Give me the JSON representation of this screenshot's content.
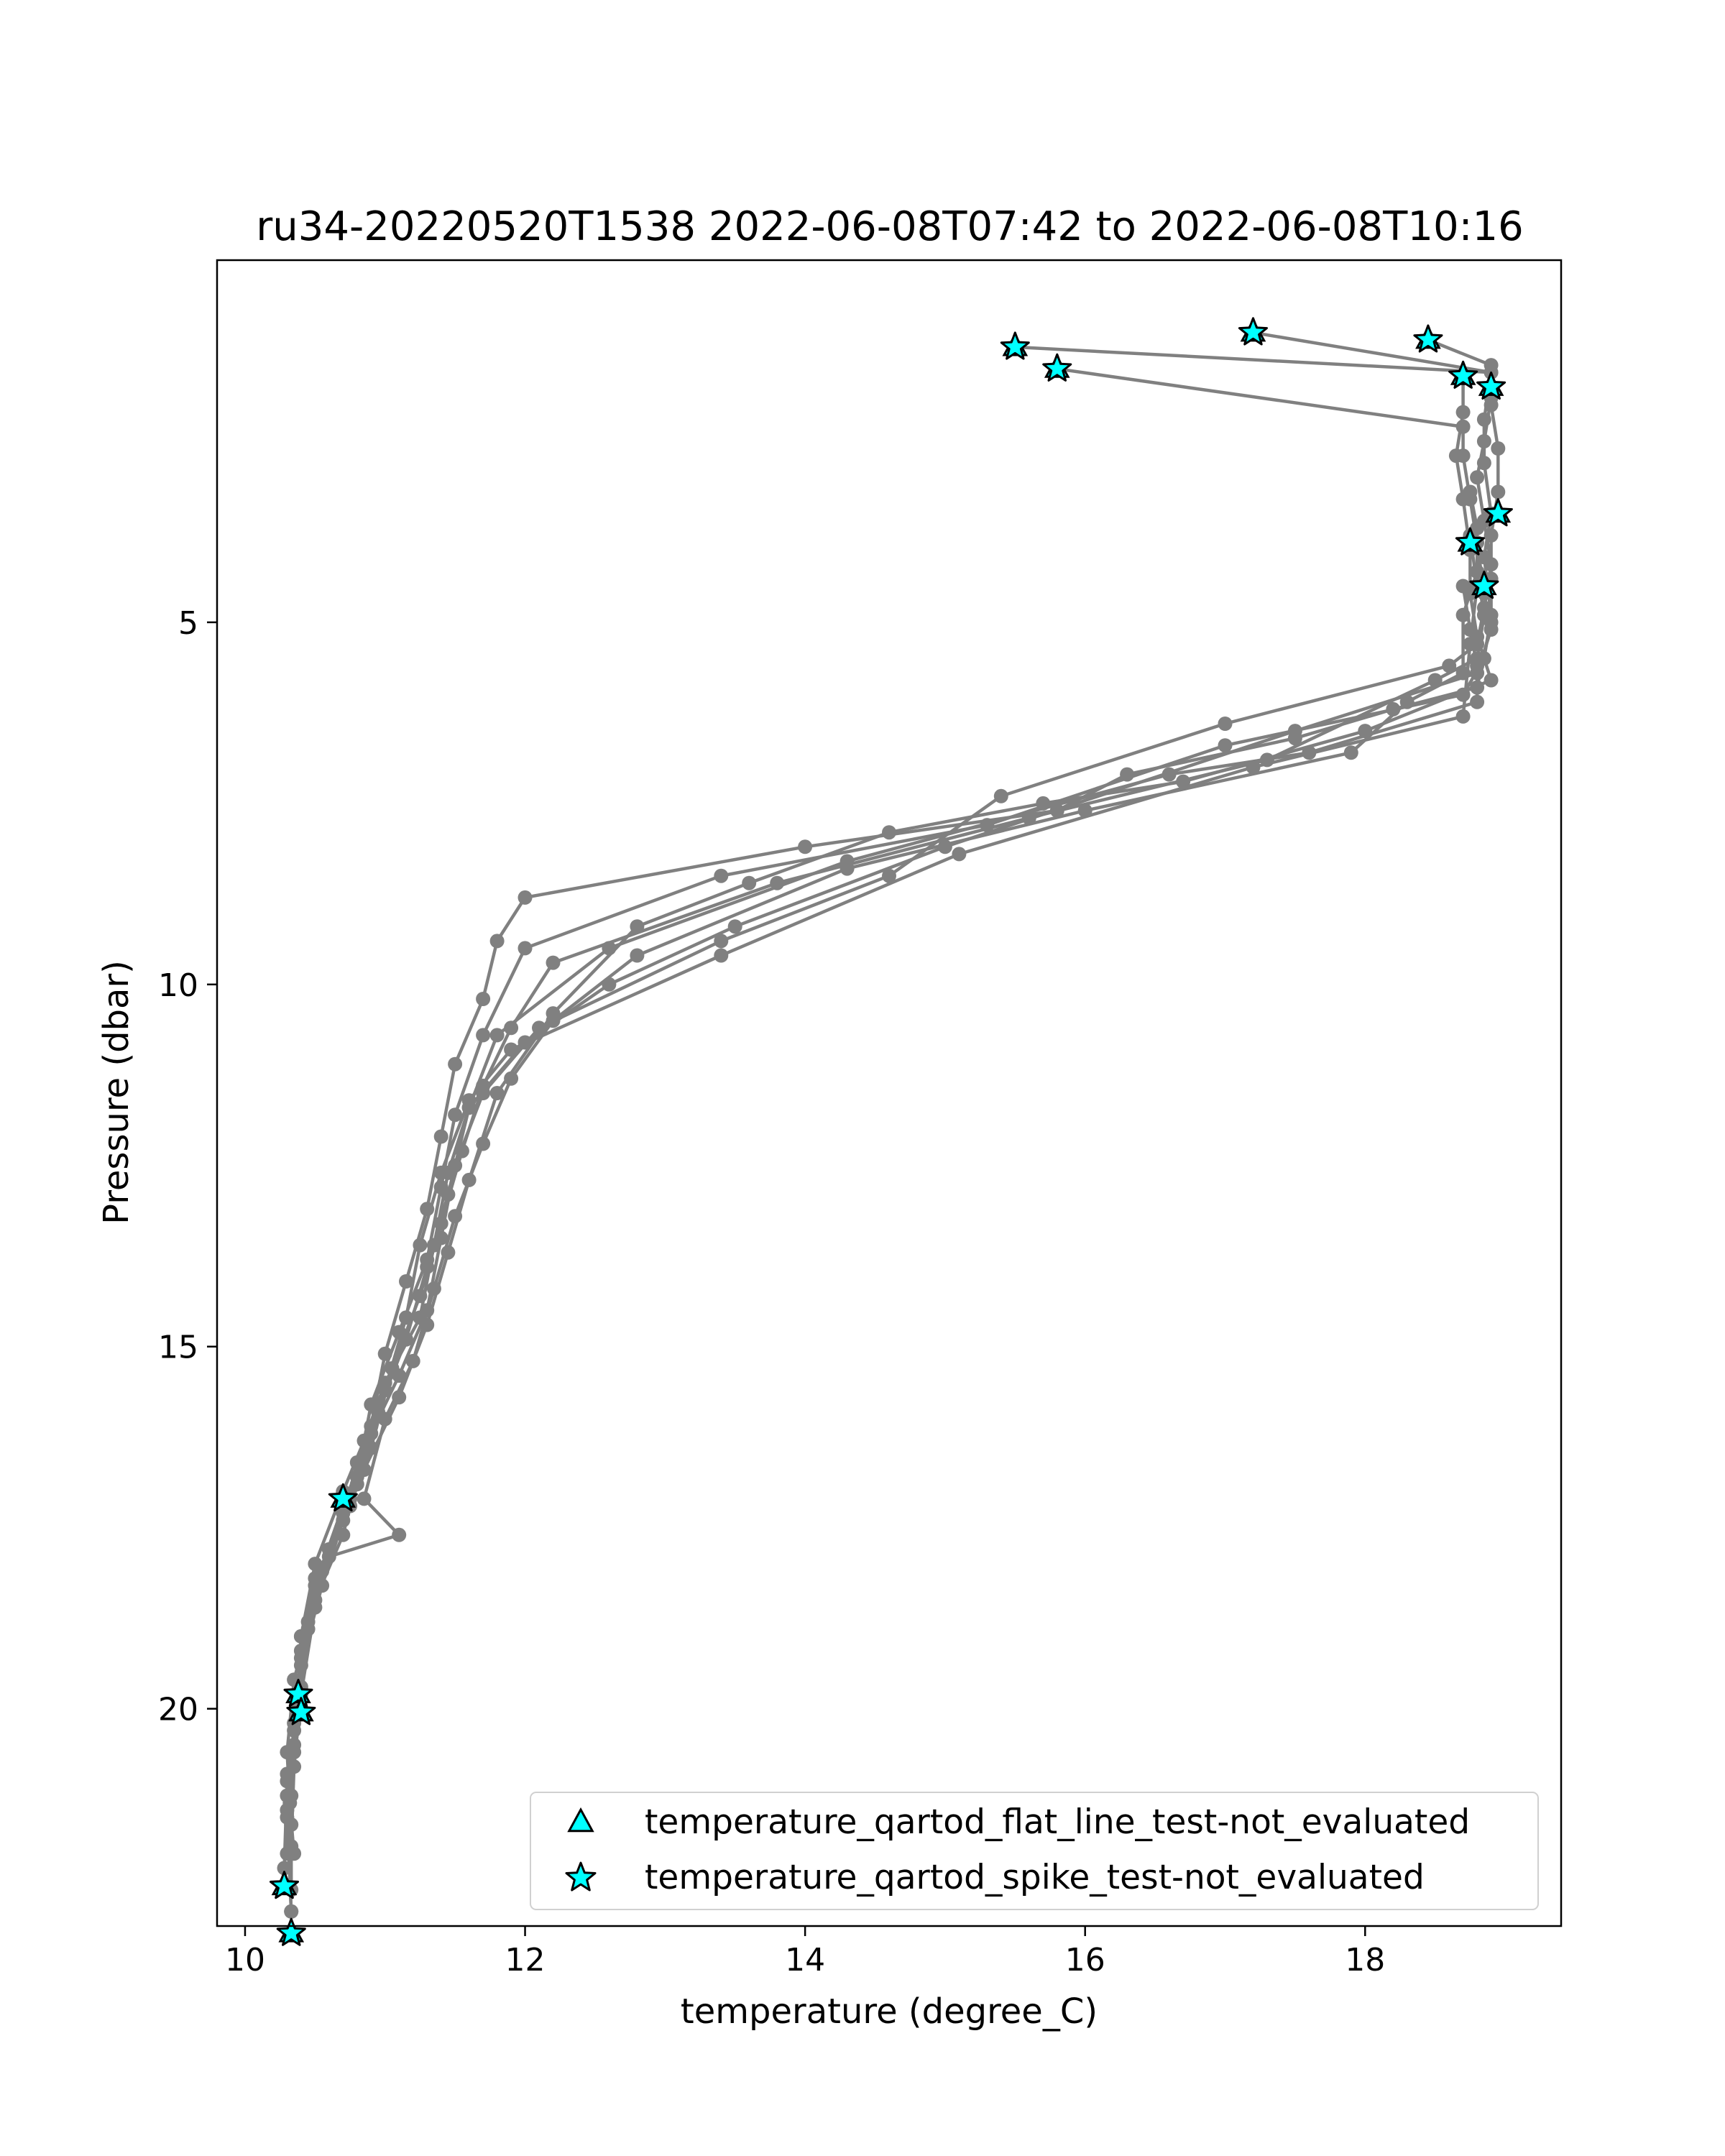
{
  "chart_data": {
    "type": "line",
    "title": "ru34-20220520T1538 2022-06-08T07:42 to 2022-06-08T10:16",
    "xlabel": "temperature (degree_C)",
    "ylabel": "Pressure (dbar)",
    "xlim": [
      9.8,
      19.4
    ],
    "ylim": [
      23.0,
      0.0
    ],
    "y_inverted": true,
    "grid": false,
    "xticks": [
      10,
      12,
      14,
      16,
      18
    ],
    "yticks": [
      5,
      10,
      15,
      20
    ],
    "line_color": "#808080",
    "marker_color": "#00ffff",
    "legend": {
      "position": "lower-right",
      "entries": [
        {
          "label": "temperature_qartod_flat_line_test-not_evaluated",
          "marker": "triangle"
        },
        {
          "label": "temperature_qartod_spike_test-not_evaluated",
          "marker": "star"
        }
      ]
    },
    "series": [
      {
        "points": [
          [
            15.5,
            1.2
          ],
          [
            18.9,
            1.55
          ],
          [
            18.9,
            1.9
          ],
          [
            18.85,
            2.5
          ],
          [
            18.8,
            3.0
          ],
          [
            18.85,
            3.6
          ],
          [
            18.9,
            4.2
          ],
          [
            18.85,
            4.8
          ],
          [
            18.8,
            5.3
          ],
          [
            18.6,
            5.6
          ],
          [
            17.0,
            6.4
          ],
          [
            15.4,
            7.4
          ],
          [
            14.6,
            8.5
          ],
          [
            13.4,
            9.4
          ],
          [
            12.1,
            10.6
          ],
          [
            11.7,
            11.5
          ],
          [
            11.5,
            12.5
          ],
          [
            11.4,
            13.5
          ],
          [
            11.3,
            14.5
          ],
          [
            11.1,
            15.4
          ],
          [
            10.9,
            16.2
          ],
          [
            10.7,
            17.2
          ],
          [
            10.5,
            18.3
          ],
          [
            10.4,
            19.3
          ],
          [
            10.35,
            20.2
          ],
          [
            10.3,
            21.4
          ],
          [
            10.33,
            22.8
          ]
        ]
      },
      {
        "points": [
          [
            15.8,
            1.5
          ],
          [
            18.7,
            2.3
          ],
          [
            18.7,
            2.7
          ],
          [
            18.75,
            3.3
          ],
          [
            18.8,
            3.9
          ],
          [
            18.85,
            4.6
          ],
          [
            18.9,
            5.1
          ],
          [
            18.8,
            5.7
          ],
          [
            17.5,
            6.5
          ],
          [
            15.0,
            8.1
          ],
          [
            13.5,
            9.2
          ],
          [
            12.6,
            10.0
          ],
          [
            12.0,
            10.8
          ],
          [
            11.6,
            11.7
          ],
          [
            11.45,
            12.6
          ],
          [
            11.35,
            13.6
          ],
          [
            11.25,
            14.6
          ],
          [
            11.0,
            15.5
          ],
          [
            10.85,
            16.3
          ],
          [
            10.7,
            17.0
          ],
          [
            10.5,
            18.0
          ],
          [
            10.4,
            19.0
          ],
          [
            10.38,
            20.0
          ],
          [
            10.3,
            21.0
          ],
          [
            10.28,
            22.2
          ]
        ]
      },
      {
        "points": [
          [
            17.2,
            1.0
          ],
          [
            18.9,
            1.55
          ],
          [
            18.85,
            2.2
          ],
          [
            18.85,
            2.8
          ],
          [
            18.9,
            3.5
          ],
          [
            18.85,
            4.1
          ],
          [
            18.9,
            4.9
          ],
          [
            18.85,
            5.5
          ],
          [
            18.7,
            6.0
          ],
          [
            17.0,
            6.7
          ],
          [
            15.3,
            7.8
          ],
          [
            13.4,
            8.5
          ],
          [
            12.0,
            9.5
          ],
          [
            11.7,
            10.7
          ],
          [
            11.5,
            11.8
          ],
          [
            11.4,
            12.8
          ],
          [
            11.3,
            13.8
          ],
          [
            11.1,
            14.8
          ],
          [
            10.9,
            15.8
          ],
          [
            10.8,
            16.8
          ],
          [
            10.7,
            17.6
          ],
          [
            10.5,
            18.5
          ],
          [
            10.35,
            19.6
          ],
          [
            10.3,
            20.6
          ],
          [
            10.33,
            21.6
          ],
          [
            10.33,
            22.5
          ]
        ]
      },
      {
        "points": [
          [
            18.45,
            1.1
          ],
          [
            18.9,
            1.45
          ],
          [
            18.9,
            2.0
          ],
          [
            18.95,
            2.6
          ],
          [
            18.95,
            3.2
          ],
          [
            18.9,
            3.8
          ],
          [
            18.9,
            4.4
          ],
          [
            18.9,
            5.0
          ],
          [
            18.8,
            5.9
          ],
          [
            18.2,
            6.2
          ],
          [
            17.5,
            6.6
          ],
          [
            16.3,
            7.1
          ],
          [
            15.8,
            7.6
          ],
          [
            14.0,
            8.1
          ],
          [
            12.0,
            8.8
          ],
          [
            11.8,
            9.4
          ],
          [
            11.7,
            10.2
          ],
          [
            11.5,
            11.1
          ],
          [
            11.4,
            12.1
          ],
          [
            11.3,
            13.1
          ],
          [
            11.15,
            14.1
          ],
          [
            11.0,
            15.1
          ],
          [
            10.9,
            16.1
          ],
          [
            10.75,
            17.1
          ],
          [
            10.55,
            18.1
          ],
          [
            10.4,
            19.0
          ],
          [
            10.38,
            19.8
          ],
          [
            10.35,
            20.6
          ],
          [
            10.3,
            21.5
          ],
          [
            10.33,
            22.8
          ]
        ]
      },
      {
        "points": [
          [
            18.7,
            1.6
          ],
          [
            18.7,
            2.1
          ],
          [
            18.65,
            2.7
          ],
          [
            18.7,
            3.3
          ],
          [
            18.75,
            4.0
          ],
          [
            18.75,
            4.6
          ],
          [
            18.8,
            5.2
          ],
          [
            18.9,
            5.8
          ],
          [
            18.0,
            6.5
          ],
          [
            16.7,
            7.2
          ],
          [
            15.7,
            7.5
          ],
          [
            14.6,
            7.9
          ],
          [
            13.6,
            8.6
          ],
          [
            12.8,
            9.2
          ],
          [
            12.2,
            10.4
          ],
          [
            11.8,
            11.5
          ],
          [
            11.6,
            12.7
          ],
          [
            11.45,
            13.7
          ],
          [
            11.3,
            14.7
          ],
          [
            11.1,
            15.7
          ],
          [
            10.85,
            16.7
          ],
          [
            10.7,
            17.3
          ],
          [
            10.55,
            18.3
          ],
          [
            10.4,
            19.4
          ],
          [
            10.38,
            20.0
          ],
          [
            10.3,
            20.9
          ],
          [
            10.35,
            22.0
          ]
        ]
      },
      {
        "points": [
          [
            18.75,
            3.2
          ],
          [
            18.8,
            3.7
          ],
          [
            18.8,
            4.3
          ],
          [
            18.7,
            4.9
          ],
          [
            18.7,
            5.7
          ],
          [
            18.3,
            6.1
          ],
          [
            17.9,
            6.8
          ],
          [
            16.0,
            7.6
          ],
          [
            14.3,
            8.4
          ],
          [
            12.8,
            9.6
          ],
          [
            12.2,
            10.5
          ],
          [
            11.9,
            11.3
          ],
          [
            11.7,
            12.2
          ],
          [
            11.5,
            13.2
          ],
          [
            11.35,
            14.2
          ],
          [
            11.2,
            15.2
          ],
          [
            11.0,
            16.0
          ],
          [
            10.85,
            17.1
          ],
          [
            11.1,
            17.6
          ],
          [
            10.6,
            17.9
          ],
          [
            10.45,
            18.9
          ],
          [
            10.38,
            19.9
          ],
          [
            10.33,
            21.2
          ],
          [
            10.3,
            22.0
          ]
        ]
      },
      {
        "points": [
          [
            18.75,
            3.8
          ],
          [
            18.8,
            4.5
          ],
          [
            18.75,
            5.3
          ],
          [
            18.7,
            6.3
          ],
          [
            17.2,
            7.0
          ],
          [
            15.1,
            8.2
          ],
          [
            13.4,
            9.6
          ],
          [
            11.9,
            10.9
          ],
          [
            11.6,
            11.6
          ],
          [
            11.4,
            12.6
          ],
          [
            11.25,
            13.6
          ],
          [
            11.15,
            14.6
          ],
          [
            11.0,
            15.6
          ],
          [
            10.8,
            16.6
          ],
          [
            10.7,
            17.4
          ],
          [
            10.5,
            18.6
          ],
          [
            10.4,
            19.8
          ],
          [
            10.35,
            20.8
          ],
          [
            10.33,
            21.9
          ]
        ]
      },
      {
        "points": [
          [
            18.7,
            4.5
          ],
          [
            18.75,
            5.1
          ],
          [
            18.8,
            5.6
          ],
          [
            18.8,
            6.1
          ],
          [
            17.6,
            6.8
          ],
          [
            16.6,
            7.1
          ],
          [
            14.3,
            8.3
          ],
          [
            12.6,
            9.5
          ],
          [
            11.8,
            10.7
          ],
          [
            11.6,
            11.7
          ],
          [
            11.45,
            12.9
          ],
          [
            11.3,
            13.9
          ],
          [
            11.15,
            14.9
          ],
          [
            10.95,
            15.9
          ],
          [
            10.8,
            16.9
          ],
          [
            10.6,
            17.8
          ],
          [
            10.45,
            18.8
          ],
          [
            10.4,
            19.7
          ],
          [
            10.35,
            20.5
          ],
          [
            10.32,
            21.3
          ]
        ]
      },
      {
        "points": [
          [
            18.8,
            4.3
          ],
          [
            18.85,
            4.9
          ],
          [
            18.8,
            5.5
          ],
          [
            18.5,
            5.8
          ],
          [
            17.3,
            6.9
          ],
          [
            15.6,
            7.7
          ],
          [
            13.8,
            8.6
          ],
          [
            12.2,
            9.7
          ],
          [
            11.9,
            10.6
          ],
          [
            11.7,
            11.4
          ],
          [
            11.55,
            12.3
          ],
          [
            11.4,
            13.3
          ],
          [
            11.25,
            14.3
          ],
          [
            11.05,
            15.3
          ],
          [
            10.9,
            16.4
          ],
          [
            10.75,
            17.2
          ],
          [
            10.5,
            18.2
          ],
          [
            10.4,
            19.2
          ],
          [
            10.35,
            20.3
          ],
          [
            10.3,
            21.2
          ]
        ]
      }
    ],
    "spike_test_points": [
      [
        15.5,
        1.2
      ],
      [
        15.8,
        1.5
      ],
      [
        17.2,
        1.0
      ],
      [
        18.45,
        1.1
      ],
      [
        18.7,
        1.6
      ],
      [
        18.9,
        1.75
      ],
      [
        18.95,
        3.5
      ],
      [
        18.75,
        3.9
      ],
      [
        18.85,
        4.5
      ],
      [
        10.7,
        17.1
      ],
      [
        10.38,
        19.8
      ],
      [
        10.4,
        20.05
      ],
      [
        10.28,
        22.45
      ],
      [
        10.33,
        23.1
      ]
    ],
    "flat_line_test_points": [
      [
        15.5,
        1.2
      ],
      [
        15.8,
        1.5
      ],
      [
        17.2,
        1.0
      ],
      [
        18.45,
        1.1
      ],
      [
        18.7,
        1.6
      ],
      [
        18.9,
        1.75
      ],
      [
        18.95,
        3.5
      ],
      [
        18.75,
        3.9
      ],
      [
        18.85,
        4.5
      ],
      [
        10.7,
        17.1
      ],
      [
        10.38,
        19.8
      ],
      [
        10.4,
        20.05
      ],
      [
        10.28,
        22.45
      ],
      [
        10.33,
        23.1
      ]
    ]
  }
}
